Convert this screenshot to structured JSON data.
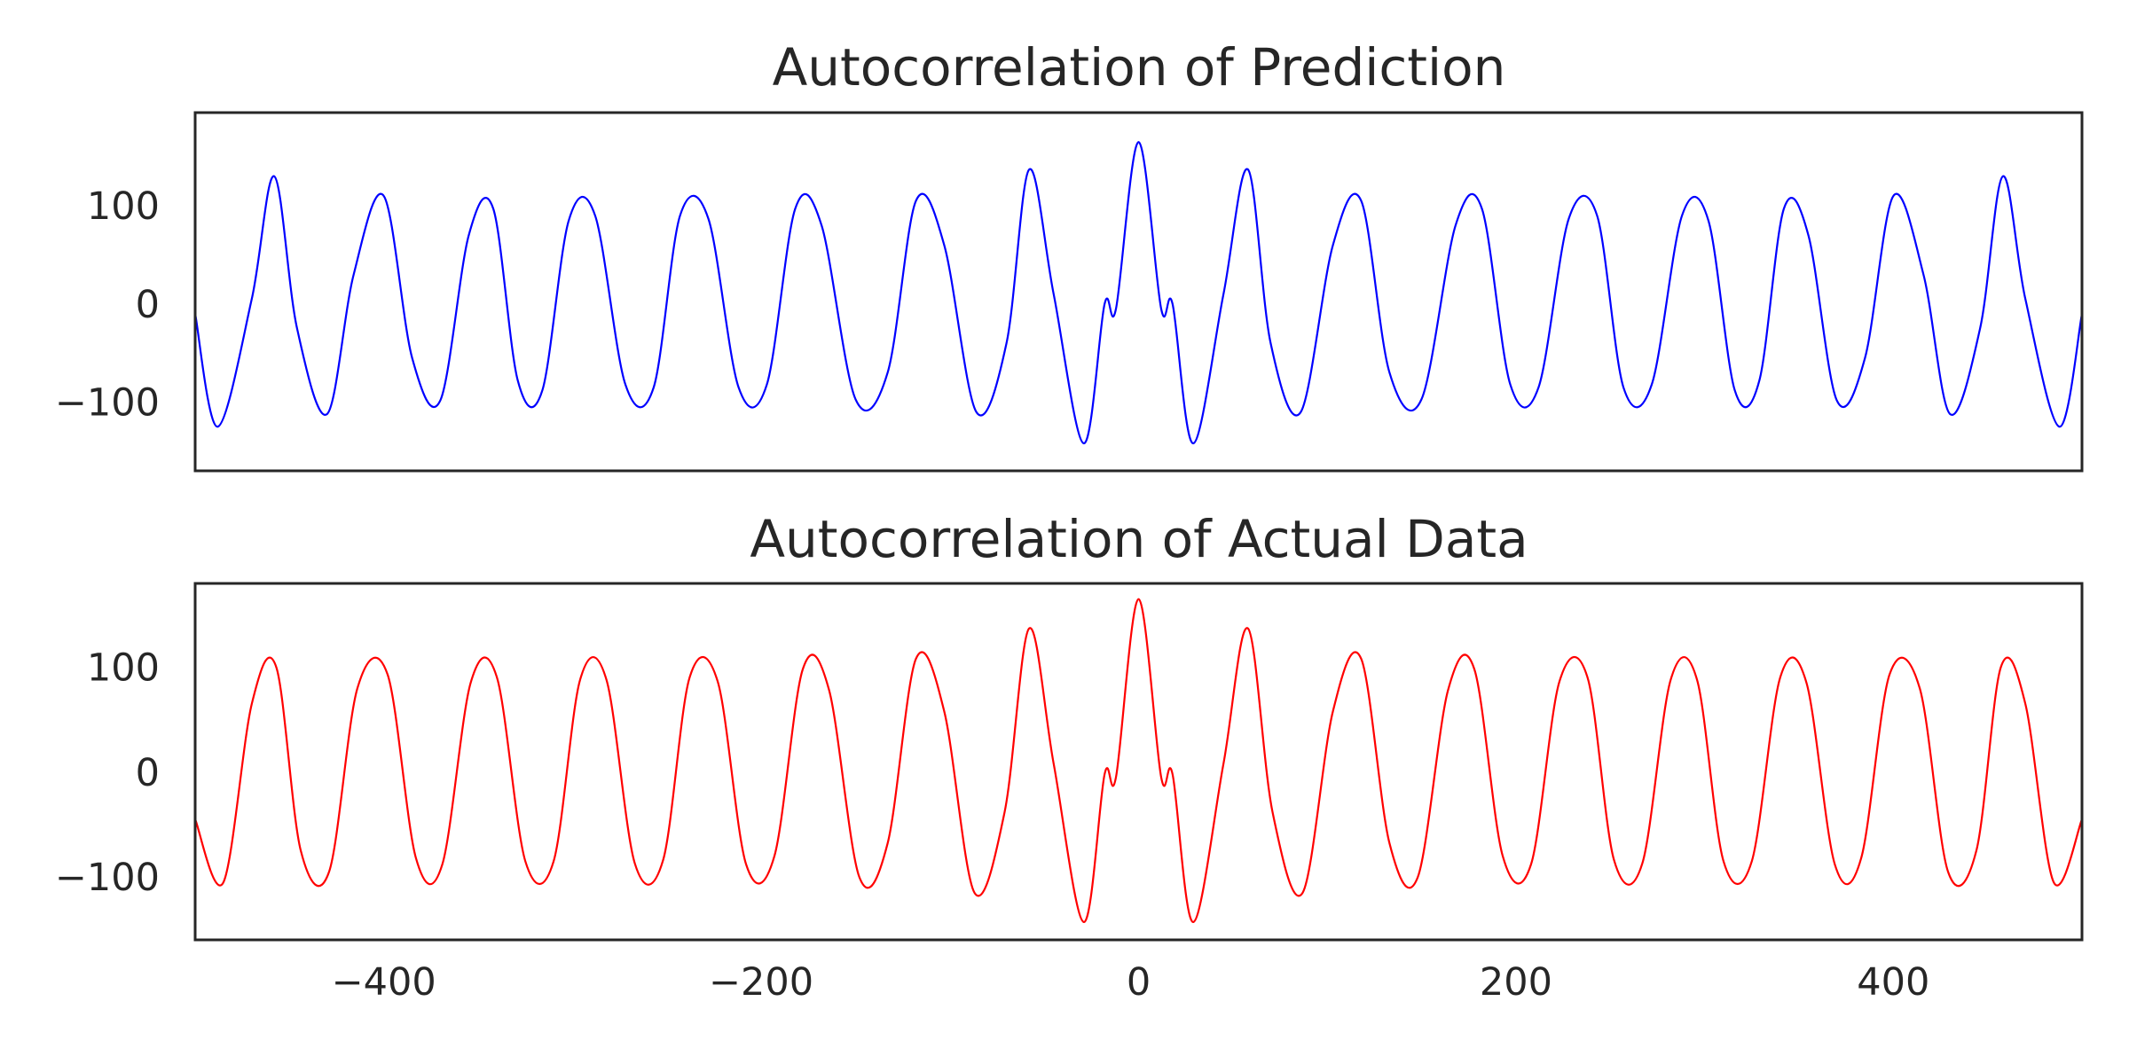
{
  "chart_data": [
    {
      "type": "line",
      "title": "Autocorrelation of Prediction",
      "xlim": [
        -500,
        500
      ],
      "ylim": [
        -170,
        195
      ],
      "yticks": [
        -100,
        0,
        100
      ],
      "ytick_labels": [
        "−100",
        "0",
        "100"
      ],
      "grid": false,
      "series": [
        {
          "color": "#0000ff",
          "points": [
            [
              -500,
              -10
            ],
            [
              -488,
              -125
            ],
            [
              -470,
              5
            ],
            [
              -458,
              130
            ],
            [
              -446,
              -25
            ],
            [
              -430,
              -112
            ],
            [
              -416,
              30
            ],
            [
              -400,
              110
            ],
            [
              -385,
              -55
            ],
            [
              -370,
              -98
            ],
            [
              -355,
              70
            ],
            [
              -342,
              97
            ],
            [
              -329,
              -78
            ],
            [
              -316,
              -88
            ],
            [
              -302,
              85
            ],
            [
              -288,
              90
            ],
            [
              -272,
              -82
            ],
            [
              -257,
              -85
            ],
            [
              -243,
              90
            ],
            [
              -228,
              87
            ],
            [
              -212,
              -85
            ],
            [
              -197,
              -82
            ],
            [
              -182,
              97
            ],
            [
              -168,
              80
            ],
            [
              -150,
              -97
            ],
            [
              -133,
              -70
            ],
            [
              -118,
              105
            ],
            [
              -103,
              60
            ],
            [
              -86,
              -110
            ],
            [
              -70,
              -40
            ],
            [
              -58,
              137
            ],
            [
              -45,
              10
            ],
            [
              -29,
              -142
            ],
            [
              -18,
              0
            ],
            [
              -12,
              -5
            ],
            [
              0,
              165
            ],
            [
              12,
              -5
            ],
            [
              18,
              0
            ],
            [
              29,
              -142
            ],
            [
              45,
              10
            ],
            [
              58,
              137
            ],
            [
              70,
              -40
            ],
            [
              86,
              -110
            ],
            [
              103,
              60
            ],
            [
              118,
              105
            ],
            [
              133,
              -70
            ],
            [
              150,
              -97
            ],
            [
              168,
              80
            ],
            [
              182,
              97
            ],
            [
              197,
              -82
            ],
            [
              212,
              -85
            ],
            [
              228,
              87
            ],
            [
              243,
              90
            ],
            [
              257,
              -85
            ],
            [
              272,
              -82
            ],
            [
              288,
              90
            ],
            [
              302,
              85
            ],
            [
              316,
              -88
            ],
            [
              329,
              -78
            ],
            [
              342,
              97
            ],
            [
              355,
              70
            ],
            [
              370,
              -98
            ],
            [
              385,
              -55
            ],
            [
              400,
              110
            ],
            [
              416,
              30
            ],
            [
              430,
              -112
            ],
            [
              446,
              -25
            ],
            [
              458,
              130
            ],
            [
              470,
              5
            ],
            [
              488,
              -125
            ],
            [
              500,
              -10
            ]
          ]
        }
      ]
    },
    {
      "type": "line",
      "title": "Autocorrelation of Actual Data",
      "xlim": [
        -500,
        500
      ],
      "ylim": [
        -160,
        180
      ],
      "yticks": [
        -100,
        0,
        100
      ],
      "ytick_labels": [
        "−100",
        "0",
        "100"
      ],
      "xticks": [
        -400,
        -200,
        0,
        200,
        400
      ],
      "xtick_labels": [
        "−400",
        "−200",
        "0",
        "200",
        "400"
      ],
      "grid": false,
      "series": [
        {
          "color": "#ff0000",
          "points": [
            [
              -500,
              -45
            ],
            [
              -485,
              -105
            ],
            [
              -470,
              65
            ],
            [
              -457,
              100
            ],
            [
              -444,
              -75
            ],
            [
              -429,
              -95
            ],
            [
              -414,
              80
            ],
            [
              -398,
              93
            ],
            [
              -383,
              -82
            ],
            [
              -369,
              -88
            ],
            [
              -354,
              85
            ],
            [
              -340,
              90
            ],
            [
              -325,
              -85
            ],
            [
              -310,
              -85
            ],
            [
              -296,
              88
            ],
            [
              -282,
              88
            ],
            [
              -267,
              -87
            ],
            [
              -252,
              -84
            ],
            [
              -238,
              90
            ],
            [
              -223,
              86
            ],
            [
              -208,
              -88
            ],
            [
              -193,
              -80
            ],
            [
              -178,
              98
            ],
            [
              -164,
              78
            ],
            [
              -148,
              -100
            ],
            [
              -133,
              -68
            ],
            [
              -118,
              108
            ],
            [
              -103,
              58
            ],
            [
              -87,
              -115
            ],
            [
              -71,
              -38
            ],
            [
              -58,
              137
            ],
            [
              -45,
              8
            ],
            [
              -29,
              -143
            ],
            [
              -18,
              -2
            ],
            [
              -12,
              -5
            ],
            [
              0,
              165
            ],
            [
              12,
              -5
            ],
            [
              18,
              -2
            ],
            [
              29,
              -143
            ],
            [
              45,
              8
            ],
            [
              58,
              137
            ],
            [
              71,
              -38
            ],
            [
              87,
              -115
            ],
            [
              103,
              58
            ],
            [
              118,
              108
            ],
            [
              133,
              -68
            ],
            [
              148,
              -100
            ],
            [
              164,
              78
            ],
            [
              178,
              98
            ],
            [
              193,
              -80
            ],
            [
              208,
              -88
            ],
            [
              223,
              86
            ],
            [
              238,
              90
            ],
            [
              252,
              -84
            ],
            [
              267,
              -87
            ],
            [
              282,
              88
            ],
            [
              296,
              88
            ],
            [
              310,
              -85
            ],
            [
              325,
              -85
            ],
            [
              340,
              90
            ],
            [
              354,
              85
            ],
            [
              369,
              -88
            ],
            [
              383,
              -82
            ],
            [
              398,
              93
            ],
            [
              414,
              80
            ],
            [
              429,
              -95
            ],
            [
              444,
              -75
            ],
            [
              457,
              100
            ],
            [
              470,
              65
            ],
            [
              485,
              -105
            ],
            [
              500,
              -45
            ]
          ]
        }
      ]
    }
  ]
}
